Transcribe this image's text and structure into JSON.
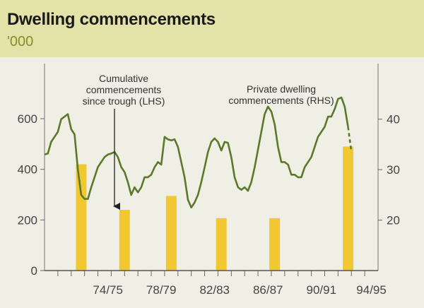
{
  "header": {
    "title": "Dwelling commencements",
    "subtitle": "'000"
  },
  "chart_data": {
    "type": "bar+line",
    "title": "Dwelling commencements",
    "units": "'000",
    "x_tick_labels": [
      "74/75",
      "78/79",
      "82/83",
      "86/87",
      "90/91",
      "94/95"
    ],
    "left_axis": {
      "ticks": [
        "0",
        "200",
        "400",
        "600"
      ],
      "range": [
        0,
        600
      ]
    },
    "right_axis": {
      "ticks": [
        "20",
        "30",
        "40"
      ],
      "range": [
        10,
        45
      ]
    },
    "bars": {
      "name": "Cumulative commencements since trough (LHS)",
      "color": "#f2c832",
      "points": [
        {
          "t": 1973.25,
          "value": 420
        },
        {
          "t": 1976.5,
          "value": 240
        },
        {
          "t": 1980.0,
          "value": 295
        },
        {
          "t": 1983.75,
          "value": 207
        },
        {
          "t": 1987.75,
          "value": 207
        },
        {
          "t": 1993.25,
          "value": 490
        }
      ]
    },
    "line": {
      "name": "Private dwelling commencements (RHS)",
      "color": "#5a7a2a",
      "points": [
        [
          1970.5,
          33.0
        ],
        [
          1970.75,
          33.2
        ],
        [
          1971.0,
          35.5
        ],
        [
          1971.25,
          36.5
        ],
        [
          1971.5,
          37.5
        ],
        [
          1971.75,
          40.0
        ],
        [
          1972.0,
          40.5
        ],
        [
          1972.25,
          41.0
        ],
        [
          1972.5,
          38.0
        ],
        [
          1972.75,
          37.0
        ],
        [
          1973.0,
          30.0
        ],
        [
          1973.25,
          25.0
        ],
        [
          1973.5,
          24.2
        ],
        [
          1973.75,
          24.2
        ],
        [
          1974.0,
          26.5
        ],
        [
          1974.25,
          28.5
        ],
        [
          1974.5,
          30.5
        ],
        [
          1974.75,
          31.5
        ],
        [
          1975.0,
          32.5
        ],
        [
          1975.25,
          33.0
        ],
        [
          1975.5,
          33.2
        ],
        [
          1975.75,
          33.5
        ],
        [
          1976.0,
          32.5
        ],
        [
          1976.25,
          30.5
        ],
        [
          1976.5,
          29.5
        ],
        [
          1976.75,
          27.5
        ],
        [
          1977.0,
          25.0
        ],
        [
          1977.25,
          26.5
        ],
        [
          1977.5,
          25.5
        ],
        [
          1977.75,
          26.5
        ],
        [
          1978.0,
          28.5
        ],
        [
          1978.25,
          28.5
        ],
        [
          1978.5,
          29.0
        ],
        [
          1978.75,
          30.5
        ],
        [
          1979.0,
          31.5
        ],
        [
          1979.25,
          31.0
        ],
        [
          1979.5,
          36.5
        ],
        [
          1979.75,
          36.0
        ],
        [
          1980.0,
          35.8
        ],
        [
          1980.25,
          36.0
        ],
        [
          1980.5,
          34.5
        ],
        [
          1980.75,
          31.5
        ],
        [
          1981.0,
          28.5
        ],
        [
          1981.25,
          24.0
        ],
        [
          1981.5,
          22.5
        ],
        [
          1981.75,
          23.5
        ],
        [
          1982.0,
          25.0
        ],
        [
          1982.25,
          27.5
        ],
        [
          1982.5,
          30.5
        ],
        [
          1982.75,
          33.5
        ],
        [
          1983.0,
          35.5
        ],
        [
          1983.25,
          36.2
        ],
        [
          1983.5,
          35.5
        ],
        [
          1983.75,
          33.8
        ],
        [
          1984.0,
          35.5
        ],
        [
          1984.25,
          35.3
        ],
        [
          1984.5,
          32.5
        ],
        [
          1984.75,
          28.5
        ],
        [
          1985.0,
          26.5
        ],
        [
          1985.25,
          26.0
        ],
        [
          1985.5,
          26.5
        ],
        [
          1985.75,
          25.8
        ],
        [
          1986.0,
          27.5
        ],
        [
          1986.25,
          30.5
        ],
        [
          1986.5,
          34.0
        ],
        [
          1986.75,
          37.5
        ],
        [
          1987.0,
          41.0
        ],
        [
          1987.25,
          42.5
        ],
        [
          1987.5,
          41.5
        ],
        [
          1987.75,
          39.0
        ],
        [
          1988.0,
          34.5
        ],
        [
          1988.25,
          31.5
        ],
        [
          1988.5,
          31.5
        ],
        [
          1988.75,
          31.0
        ],
        [
          1989.0,
          29.0
        ],
        [
          1989.25,
          29.0
        ],
        [
          1989.5,
          28.5
        ],
        [
          1989.75,
          28.5
        ],
        [
          1990.0,
          30.5
        ],
        [
          1990.25,
          31.5
        ],
        [
          1990.5,
          32.5
        ],
        [
          1990.75,
          34.5
        ],
        [
          1991.0,
          36.5
        ],
        [
          1991.25,
          37.5
        ],
        [
          1991.5,
          38.5
        ],
        [
          1991.75,
          40.5
        ],
        [
          1992.0,
          40.5
        ],
        [
          1992.25,
          42.0
        ],
        [
          1992.5,
          44.0
        ],
        [
          1992.75,
          44.3
        ],
        [
          1993.0,
          42.5
        ],
        [
          1993.25,
          38.5
        ],
        [
          1993.5,
          33.5
        ]
      ]
    },
    "annotations": [
      {
        "id": "bars",
        "lines": [
          "Cumulative",
          "commencements",
          "since trough (LHS)"
        ]
      },
      {
        "id": "line",
        "lines": [
          "Private dwelling",
          "commencements (RHS)"
        ]
      }
    ]
  }
}
